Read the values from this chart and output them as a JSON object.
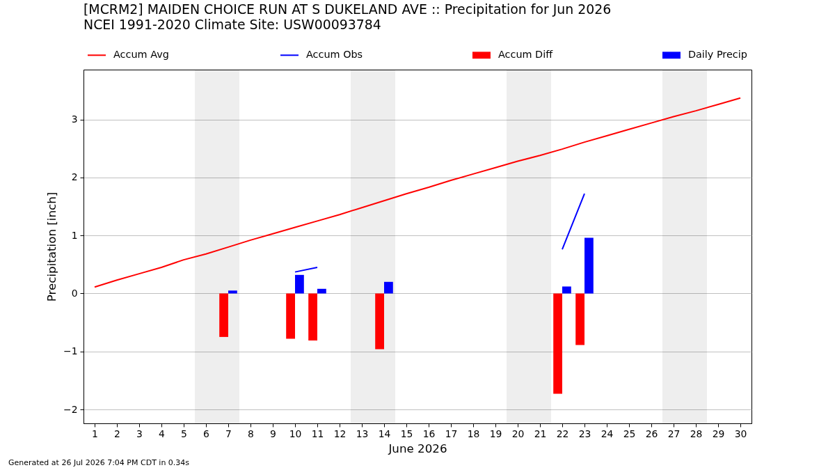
{
  "chart_data": {
    "type": "bar",
    "title": "[MCRM2] MAIDEN CHOICE RUN AT S DUKELAND AVE :: Precipitation for Jun 2026",
    "subtitle": "NCEI 1991-2020 Climate Site: USW00093784",
    "xlabel": "June 2026",
    "ylabel": "Precipitation [inch]",
    "annotations": [
      "Generated at 26 Jul 2026 7:04 PM CDT in 0.34s"
    ],
    "x": [
      1,
      2,
      3,
      4,
      5,
      6,
      7,
      8,
      9,
      10,
      11,
      12,
      13,
      14,
      15,
      16,
      17,
      18,
      19,
      20,
      21,
      22,
      23,
      24,
      25,
      26,
      27,
      28,
      29,
      30
    ],
    "series": [
      {
        "name": "Accum Avg",
        "type": "line",
        "color": "#ff0000",
        "values": [
          0.11,
          0.23,
          0.34,
          0.45,
          0.58,
          0.68,
          0.8,
          0.92,
          1.03,
          1.14,
          1.25,
          1.36,
          1.48,
          1.6,
          1.72,
          1.83,
          1.95,
          2.06,
          2.17,
          2.28,
          2.38,
          2.49,
          2.61,
          2.72,
          2.83,
          2.94,
          3.05,
          3.15,
          3.26,
          3.37
        ]
      },
      {
        "name": "Accum Obs",
        "type": "line",
        "color": "#0000ff",
        "values": [
          null,
          null,
          null,
          null,
          null,
          null,
          null,
          null,
          null,
          0.37,
          0.45,
          null,
          null,
          null,
          null,
          null,
          null,
          null,
          null,
          null,
          null,
          0.76,
          1.72,
          null,
          null,
          null,
          null,
          null,
          null,
          null
        ]
      },
      {
        "name": "Accum Diff",
        "color": "#ff0000",
        "values": [
          null,
          null,
          null,
          null,
          null,
          null,
          -0.75,
          null,
          null,
          -0.78,
          -0.81,
          null,
          null,
          -0.96,
          null,
          null,
          null,
          null,
          null,
          null,
          null,
          -1.73,
          -0.89,
          null,
          null,
          null,
          null,
          null,
          null,
          null
        ]
      },
      {
        "name": "Daily Precip",
        "color": "#0000ff",
        "values": [
          null,
          null,
          null,
          null,
          null,
          null,
          0.05,
          null,
          null,
          0.32,
          0.08,
          null,
          null,
          0.2,
          null,
          null,
          null,
          null,
          null,
          null,
          null,
          0.12,
          0.96,
          null,
          null,
          null,
          null,
          null,
          null,
          null
        ]
      }
    ],
    "xlim": [
      0.5,
      30.5
    ],
    "xticks": [
      1,
      2,
      3,
      4,
      5,
      6,
      7,
      8,
      9,
      10,
      11,
      12,
      13,
      14,
      15,
      16,
      17,
      18,
      19,
      20,
      21,
      22,
      23,
      24,
      25,
      26,
      27,
      28,
      29,
      30
    ],
    "ylim": [
      -2.24,
      3.86
    ],
    "yticks": [
      {
        "value": -2,
        "label": "−2"
      },
      {
        "value": -1,
        "label": "−1"
      },
      0,
      1,
      2,
      3
    ],
    "bands": [
      {
        "axis": "x",
        "from": 5.5,
        "to": 7.5,
        "color": "#eeeeee"
      },
      {
        "axis": "x",
        "from": 12.5,
        "to": 14.5,
        "color": "#eeeeee"
      },
      {
        "axis": "x",
        "from": 19.5,
        "to": 21.5,
        "color": "#eeeeee"
      },
      {
        "axis": "x",
        "from": 26.5,
        "to": 28.5,
        "color": "#eeeeee"
      }
    ],
    "grid": "y",
    "legend": "top"
  }
}
